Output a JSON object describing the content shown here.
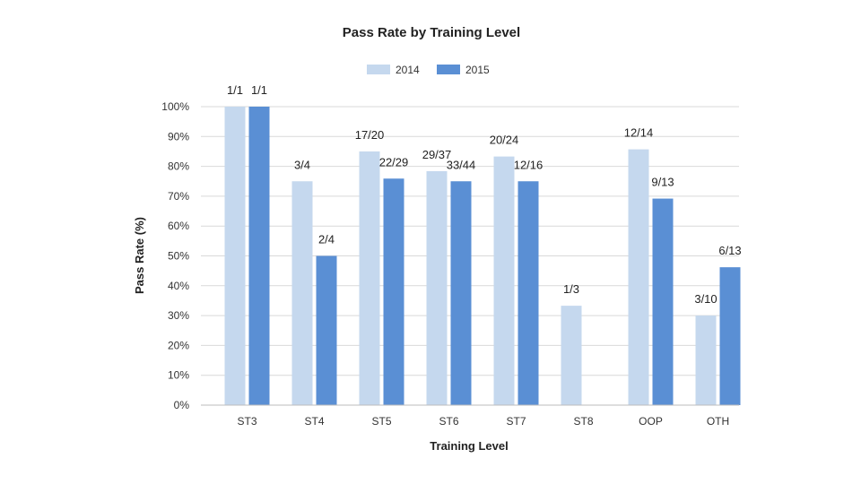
{
  "chart_data": {
    "type": "bar",
    "title": "Pass Rate by Training Level",
    "xlabel": "Training Level",
    "ylabel": "Pass Rate (%)",
    "ylim": [
      0,
      100
    ],
    "yticks": [
      "0%",
      "10%",
      "20%",
      "30%",
      "40%",
      "50%",
      "60%",
      "70%",
      "80%",
      "90%",
      "100%"
    ],
    "grid": true,
    "legend_position": "top-center",
    "categories": [
      "ST3",
      "ST4",
      "ST5",
      "ST6",
      "ST7",
      "ST8",
      "OOP",
      "OTH"
    ],
    "series": [
      {
        "name": "2014",
        "color": "#c5d8ee",
        "values": [
          100,
          75,
          85,
          78.4,
          83.3,
          33.3,
          85.7,
          30
        ],
        "labels": [
          "1/1",
          "3/4",
          "17/20",
          "29/37",
          "20/24",
          "1/3",
          "12/14",
          "3/10"
        ]
      },
      {
        "name": "2015",
        "color": "#5a8fd4",
        "values": [
          100,
          50,
          75.9,
          75,
          75,
          null,
          69.2,
          46.2
        ],
        "labels": [
          "1/1",
          "2/4",
          "22/29",
          "33/44",
          "12/16",
          "",
          "9/13",
          "6/13"
        ]
      }
    ]
  }
}
